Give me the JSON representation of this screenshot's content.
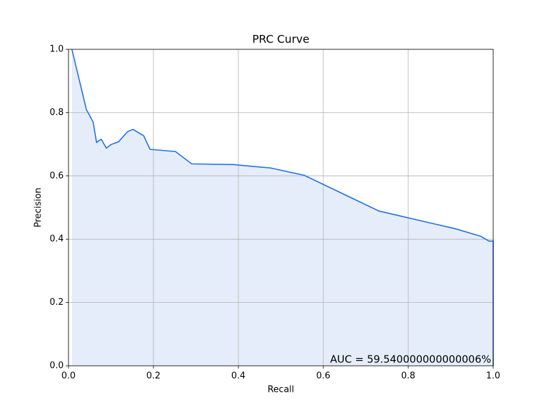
{
  "chart_data": {
    "type": "area",
    "title": "PRC Curve",
    "xlabel": "Recall",
    "ylabel": "Precision",
    "annotation": "AUC = 59.540000000000006%",
    "x": [
      0.008,
      0.042,
      0.058,
      0.063,
      0.066,
      0.077,
      0.089,
      0.1,
      0.118,
      0.139,
      0.152,
      0.177,
      0.192,
      0.252,
      0.29,
      0.387,
      0.476,
      0.555,
      0.731,
      0.911,
      0.971,
      0.99,
      1.0,
      1.0
    ],
    "series": [
      {
        "name": "PRC",
        "color": "#1f6fe8",
        "fill": "#e5edfb",
        "values": [
          1.0,
          0.81,
          0.77,
          0.73,
          0.706,
          0.716,
          0.688,
          0.699,
          0.708,
          0.74,
          0.747,
          0.727,
          0.684,
          0.677,
          0.638,
          0.636,
          0.625,
          0.602,
          0.489,
          0.433,
          0.409,
          0.394,
          0.394,
          0.0
        ]
      }
    ],
    "xlim": [
      0,
      1
    ],
    "ylim": [
      0,
      1
    ],
    "xticks": [
      {
        "value": 0,
        "label": "0.0"
      },
      0.2,
      0.4,
      0.6,
      0.8,
      {
        "value": 1,
        "label": "1.0"
      }
    ],
    "yticks": [
      {
        "value": 0,
        "label": "0.0"
      },
      0.2,
      0.4,
      0.6,
      0.8,
      {
        "value": 1,
        "label": "1.0"
      }
    ],
    "grid": true
  }
}
